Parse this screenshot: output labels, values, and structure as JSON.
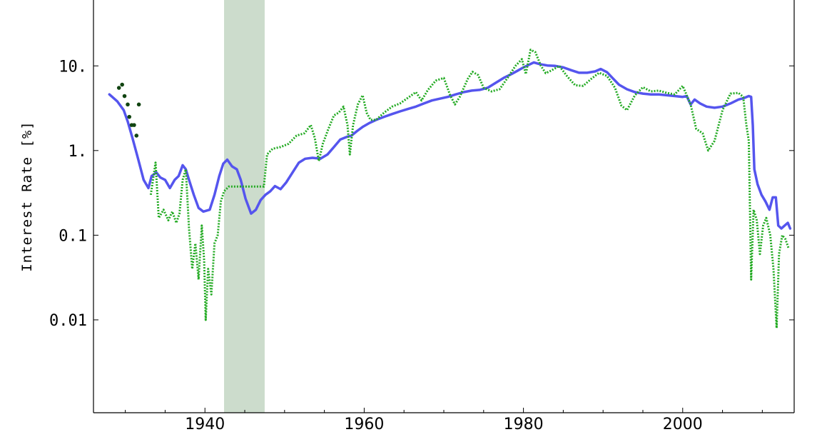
{
  "chart_data": {
    "type": "line",
    "title": "",
    "xlabel": "",
    "ylabel": "Interest Rate [%]",
    "yscale": "log",
    "xlim": [
      1926,
      2014
    ],
    "ylim": [
      0.0008,
      60
    ],
    "grid": false,
    "legend": "none",
    "x_ticks": [
      {
        "value": 1940,
        "label": "1940"
      },
      {
        "value": 1960,
        "label": "1960"
      },
      {
        "value": 1980,
        "label": "1980"
      },
      {
        "value": 2000,
        "label": "2000"
      }
    ],
    "y_ticks": [
      {
        "value": 10,
        "label": "10."
      },
      {
        "value": 1,
        "label": "1."
      },
      {
        "value": 0.1,
        "label": "0.1"
      },
      {
        "value": 0.01,
        "label": "0.01"
      }
    ],
    "shaded_regions": [
      {
        "x_start": 1942.4,
        "x_end": 1947.5,
        "color": "#ccdccc"
      }
    ],
    "series": [
      {
        "style": "solid",
        "color": "#5555ee",
        "points": [
          [
            1928.0,
            4.6
          ],
          [
            1929.0,
            3.8
          ],
          [
            1929.8,
            3.0
          ],
          [
            1930.3,
            2.2
          ],
          [
            1930.9,
            1.4
          ],
          [
            1931.6,
            0.8
          ],
          [
            1932.3,
            0.45
          ],
          [
            1932.9,
            0.36
          ],
          [
            1933.3,
            0.5
          ],
          [
            1933.9,
            0.55
          ],
          [
            1934.4,
            0.48
          ],
          [
            1935.0,
            0.45
          ],
          [
            1935.6,
            0.36
          ],
          [
            1936.2,
            0.45
          ],
          [
            1936.7,
            0.5
          ],
          [
            1937.2,
            0.67
          ],
          [
            1937.6,
            0.6
          ],
          [
            1938.0,
            0.45
          ],
          [
            1938.6,
            0.3
          ],
          [
            1939.2,
            0.21
          ],
          [
            1939.8,
            0.19
          ],
          [
            1940.6,
            0.2
          ],
          [
            1941.2,
            0.3
          ],
          [
            1941.8,
            0.5
          ],
          [
            1942.3,
            0.7
          ],
          [
            1942.8,
            0.78
          ],
          [
            1943.4,
            0.65
          ],
          [
            1944.0,
            0.6
          ],
          [
            1944.5,
            0.45
          ],
          [
            1945.1,
            0.27
          ],
          [
            1945.8,
            0.18
          ],
          [
            1946.4,
            0.2
          ],
          [
            1947.0,
            0.26
          ],
          [
            1947.6,
            0.3
          ],
          [
            1948.2,
            0.33
          ],
          [
            1948.8,
            0.38
          ],
          [
            1949.5,
            0.35
          ],
          [
            1950.2,
            0.42
          ],
          [
            1951.0,
            0.55
          ],
          [
            1951.8,
            0.72
          ],
          [
            1952.6,
            0.8
          ],
          [
            1953.5,
            0.82
          ],
          [
            1954.5,
            0.8
          ],
          [
            1955.4,
            0.9
          ],
          [
            1956.2,
            1.1
          ],
          [
            1957.0,
            1.35
          ],
          [
            1957.8,
            1.45
          ],
          [
            1958.4,
            1.5
          ],
          [
            1959.1,
            1.7
          ],
          [
            1959.8,
            1.9
          ],
          [
            1960.6,
            2.1
          ],
          [
            1961.5,
            2.3
          ],
          [
            1962.5,
            2.5
          ],
          [
            1963.5,
            2.7
          ],
          [
            1964.5,
            2.9
          ],
          [
            1965.5,
            3.1
          ],
          [
            1966.5,
            3.3
          ],
          [
            1967.5,
            3.6
          ],
          [
            1968.5,
            3.9
          ],
          [
            1969.5,
            4.1
          ],
          [
            1970.5,
            4.3
          ],
          [
            1971.5,
            4.6
          ],
          [
            1972.5,
            4.9
          ],
          [
            1973.5,
            5.1
          ],
          [
            1974.5,
            5.2
          ],
          [
            1975.5,
            5.5
          ],
          [
            1976.5,
            6.3
          ],
          [
            1977.5,
            7.2
          ],
          [
            1978.5,
            8.0
          ],
          [
            1979.3,
            8.8
          ],
          [
            1980.0,
            9.6
          ],
          [
            1980.6,
            10.2
          ],
          [
            1981.3,
            11.0
          ],
          [
            1982.0,
            10.5
          ],
          [
            1983.0,
            10.1
          ],
          [
            1984.0,
            10.0
          ],
          [
            1985.0,
            9.6
          ],
          [
            1986.0,
            8.9
          ],
          [
            1987.0,
            8.3
          ],
          [
            1988.0,
            8.3
          ],
          [
            1989.0,
            8.6
          ],
          [
            1989.7,
            9.2
          ],
          [
            1990.5,
            8.4
          ],
          [
            1991.3,
            7.0
          ],
          [
            1992.0,
            6.0
          ],
          [
            1993.0,
            5.3
          ],
          [
            1994.0,
            4.9
          ],
          [
            1995.0,
            4.7
          ],
          [
            1996.0,
            4.6
          ],
          [
            1997.0,
            4.6
          ],
          [
            1998.0,
            4.5
          ],
          [
            1999.0,
            4.4
          ],
          [
            2000.0,
            4.3
          ],
          [
            2000.5,
            4.4
          ],
          [
            2001.0,
            3.5
          ],
          [
            2001.5,
            4.0
          ],
          [
            2002.2,
            3.6
          ],
          [
            2003.0,
            3.3
          ],
          [
            2004.0,
            3.2
          ],
          [
            2005.0,
            3.3
          ],
          [
            2006.0,
            3.6
          ],
          [
            2007.0,
            4.0
          ],
          [
            2007.8,
            4.2
          ],
          [
            2008.3,
            4.4
          ],
          [
            2008.6,
            4.3
          ],
          [
            2008.8,
            2.0
          ],
          [
            2009.0,
            0.6
          ],
          [
            2009.4,
            0.4
          ],
          [
            2009.9,
            0.3
          ],
          [
            2010.4,
            0.25
          ],
          [
            2010.9,
            0.2
          ],
          [
            2011.3,
            0.28
          ],
          [
            2011.7,
            0.28
          ],
          [
            2012.0,
            0.13
          ],
          [
            2012.4,
            0.12
          ],
          [
            2012.8,
            0.13
          ],
          [
            2013.2,
            0.14
          ],
          [
            2013.5,
            0.12
          ]
        ]
      },
      {
        "style": "dotted",
        "color": "#22aa22",
        "points": [
          [
            1933.2,
            0.3
          ],
          [
            1933.8,
            0.72
          ],
          [
            1934.2,
            0.16
          ],
          [
            1934.8,
            0.2
          ],
          [
            1935.4,
            0.15
          ],
          [
            1935.9,
            0.19
          ],
          [
            1936.4,
            0.14
          ],
          [
            1936.8,
            0.18
          ],
          [
            1937.2,
            0.45
          ],
          [
            1937.6,
            0.6
          ],
          [
            1938.0,
            0.12
          ],
          [
            1938.4,
            0.04
          ],
          [
            1938.8,
            0.08
          ],
          [
            1939.2,
            0.03
          ],
          [
            1939.6,
            0.13
          ],
          [
            1939.9,
            0.05
          ],
          [
            1940.1,
            0.01
          ],
          [
            1940.4,
            0.04
          ],
          [
            1940.8,
            0.02
          ],
          [
            1941.2,
            0.08
          ],
          [
            1941.6,
            0.1
          ],
          [
            1942.0,
            0.25
          ],
          [
            1942.4,
            0.33
          ],
          [
            1943.0,
            0.375
          ],
          [
            1947.4,
            0.375
          ],
          [
            1947.8,
            0.9
          ],
          [
            1948.5,
            1.05
          ],
          [
            1949.5,
            1.1
          ],
          [
            1950.5,
            1.2
          ],
          [
            1951.5,
            1.5
          ],
          [
            1952.5,
            1.6
          ],
          [
            1953.3,
            2.0
          ],
          [
            1953.8,
            1.4
          ],
          [
            1954.3,
            0.75
          ],
          [
            1954.8,
            1.2
          ],
          [
            1955.5,
            1.8
          ],
          [
            1956.2,
            2.6
          ],
          [
            1956.8,
            2.8
          ],
          [
            1957.4,
            3.3
          ],
          [
            1957.9,
            2.0
          ],
          [
            1958.2,
            0.9
          ],
          [
            1958.6,
            2.0
          ],
          [
            1959.2,
            3.5
          ],
          [
            1959.8,
            4.5
          ],
          [
            1960.3,
            2.8
          ],
          [
            1960.8,
            2.3
          ],
          [
            1961.5,
            2.3
          ],
          [
            1962.5,
            2.8
          ],
          [
            1963.5,
            3.3
          ],
          [
            1964.5,
            3.6
          ],
          [
            1965.5,
            4.2
          ],
          [
            1966.5,
            4.9
          ],
          [
            1967.2,
            3.9
          ],
          [
            1968.0,
            5.2
          ],
          [
            1969.0,
            6.7
          ],
          [
            1970.0,
            7.2
          ],
          [
            1970.8,
            4.5
          ],
          [
            1971.4,
            3.5
          ],
          [
            1972.0,
            4.3
          ],
          [
            1973.0,
            7.0
          ],
          [
            1973.6,
            8.5
          ],
          [
            1974.3,
            7.8
          ],
          [
            1975.0,
            5.5
          ],
          [
            1976.0,
            5.0
          ],
          [
            1977.0,
            5.3
          ],
          [
            1978.0,
            7.2
          ],
          [
            1979.0,
            10.0
          ],
          [
            1979.8,
            12.0
          ],
          [
            1980.3,
            8.0
          ],
          [
            1980.9,
            15.5
          ],
          [
            1981.5,
            14.5
          ],
          [
            1982.2,
            10.0
          ],
          [
            1982.8,
            8.2
          ],
          [
            1983.5,
            8.8
          ],
          [
            1984.5,
            10.0
          ],
          [
            1985.5,
            7.5
          ],
          [
            1986.5,
            5.9
          ],
          [
            1987.5,
            5.8
          ],
          [
            1988.5,
            7.0
          ],
          [
            1989.5,
            8.3
          ],
          [
            1990.5,
            7.6
          ],
          [
            1991.5,
            5.5
          ],
          [
            1992.3,
            3.4
          ],
          [
            1993.0,
            3.0
          ],
          [
            1994.0,
            4.5
          ],
          [
            1995.0,
            5.6
          ],
          [
            1996.0,
            5.0
          ],
          [
            1997.0,
            5.1
          ],
          [
            1998.0,
            4.8
          ],
          [
            1999.0,
            4.6
          ],
          [
            2000.0,
            5.8
          ],
          [
            2001.0,
            3.5
          ],
          [
            2001.7,
            1.8
          ],
          [
            2002.5,
            1.6
          ],
          [
            2003.2,
            1.0
          ],
          [
            2004.0,
            1.3
          ],
          [
            2005.0,
            3.0
          ],
          [
            2006.0,
            4.7
          ],
          [
            2007.0,
            4.8
          ],
          [
            2007.6,
            4.3
          ],
          [
            2008.0,
            2.0
          ],
          [
            2008.3,
            1.3
          ],
          [
            2008.6,
            0.03
          ],
          [
            2008.9,
            0.2
          ],
          [
            2009.3,
            0.15
          ],
          [
            2009.7,
            0.06
          ],
          [
            2010.1,
            0.13
          ],
          [
            2010.5,
            0.16
          ],
          [
            2011.0,
            0.1
          ],
          [
            2011.4,
            0.04
          ],
          [
            2011.8,
            0.008
          ],
          [
            2012.1,
            0.06
          ],
          [
            2012.5,
            0.1
          ],
          [
            2012.9,
            0.09
          ],
          [
            2013.3,
            0.07
          ]
        ]
      },
      {
        "style": "points",
        "color": "#114411",
        "points": [
          [
            1929.2,
            5.5
          ],
          [
            1929.6,
            6.0
          ],
          [
            1929.9,
            4.4
          ],
          [
            1930.3,
            3.5
          ],
          [
            1930.5,
            2.5
          ],
          [
            1930.8,
            2.0
          ],
          [
            1931.1,
            2.0
          ],
          [
            1931.4,
            1.5
          ],
          [
            1931.7,
            3.5
          ]
        ]
      }
    ]
  }
}
